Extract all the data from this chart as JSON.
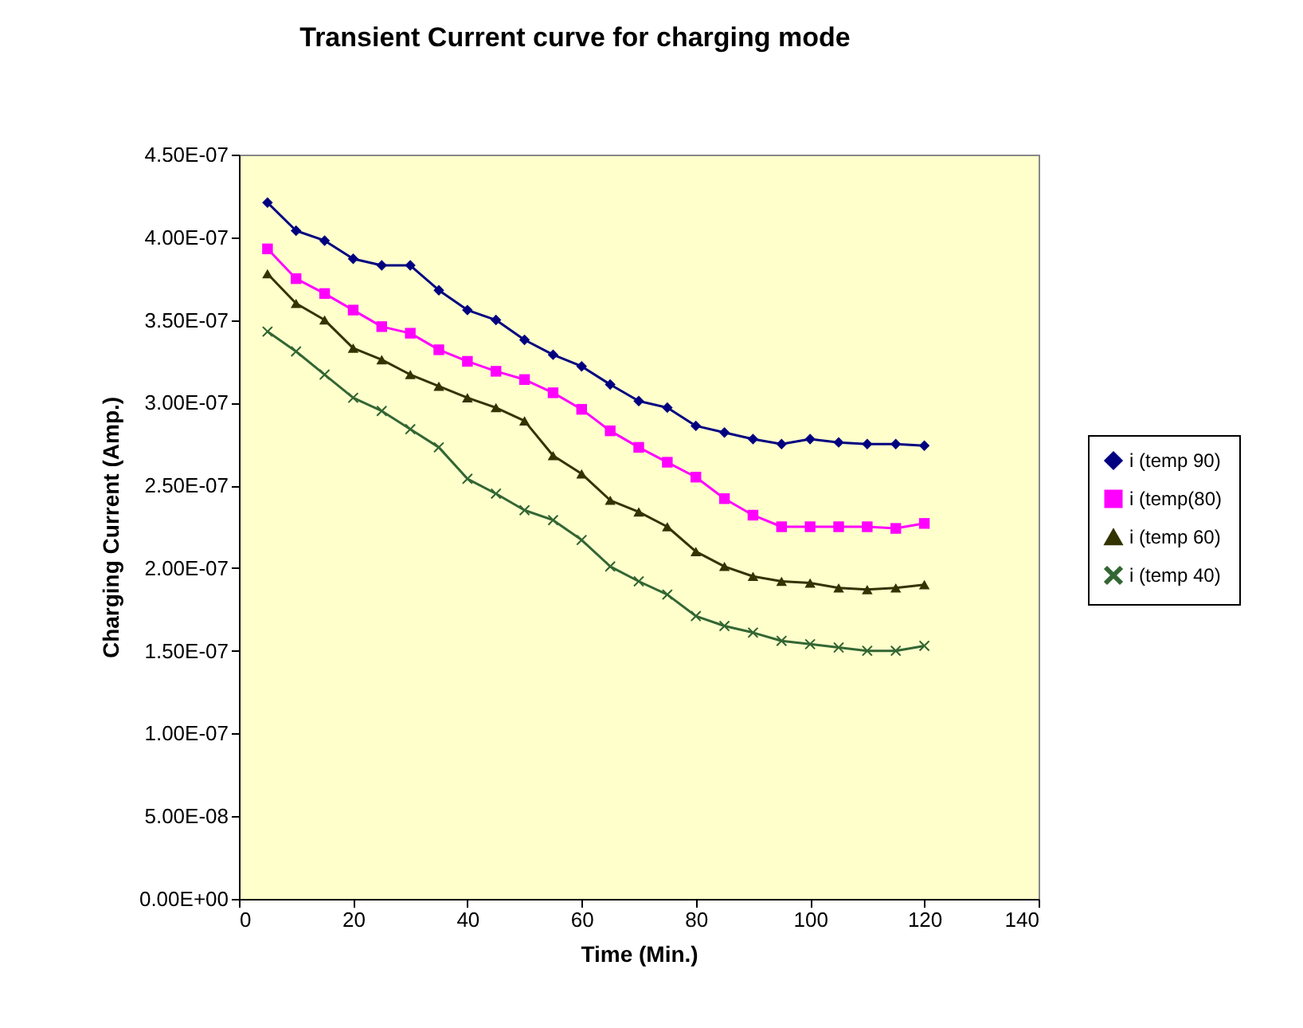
{
  "chart_data": {
    "type": "line",
    "title": "Transient Current curve for charging mode",
    "xlabel": "Time (Min.)",
    "ylabel": "Charging Current (Amp.)",
    "x": [
      5,
      10,
      15,
      20,
      25,
      30,
      35,
      40,
      45,
      50,
      55,
      60,
      65,
      70,
      75,
      80,
      85,
      90,
      95,
      100,
      105,
      110,
      115,
      120
    ],
    "series": [
      {
        "name": "i (temp 90)",
        "color": "#000080",
        "marker": "diamond",
        "values": [
          4.21e-07,
          4.04e-07,
          3.98e-07,
          3.87e-07,
          3.83e-07,
          3.83e-07,
          3.68e-07,
          3.56e-07,
          3.5e-07,
          3.38e-07,
          3.29e-07,
          3.22e-07,
          3.11e-07,
          3.01e-07,
          2.97e-07,
          2.86e-07,
          2.82e-07,
          2.78e-07,
          2.75e-07,
          2.78e-07,
          2.76e-07,
          2.75e-07,
          2.75e-07,
          2.74e-07
        ]
      },
      {
        "name": "i (temp(80)",
        "color": "#ff00ff",
        "marker": "square",
        "values": [
          3.93e-07,
          3.75e-07,
          3.66e-07,
          3.56e-07,
          3.46e-07,
          3.42e-07,
          3.32e-07,
          3.25e-07,
          3.19e-07,
          3.14e-07,
          3.06e-07,
          2.96e-07,
          2.83e-07,
          2.73e-07,
          2.64e-07,
          2.55e-07,
          2.42e-07,
          2.32e-07,
          2.25e-07,
          2.25e-07,
          2.25e-07,
          2.25e-07,
          2.24e-07,
          2.27e-07
        ]
      },
      {
        "name": "i (temp 60)",
        "color": "#333300",
        "marker": "triangle",
        "values": [
          3.78e-07,
          3.6e-07,
          3.5e-07,
          3.33e-07,
          3.26e-07,
          3.17e-07,
          3.1e-07,
          3.03e-07,
          2.97e-07,
          2.89e-07,
          2.68e-07,
          2.57e-07,
          2.41e-07,
          2.34e-07,
          2.25e-07,
          2.1e-07,
          2.01e-07,
          1.95e-07,
          1.92e-07,
          1.91e-07,
          1.88e-07,
          1.87e-07,
          1.88e-07,
          1.9e-07
        ]
      },
      {
        "name": "i (temp 40)",
        "color": "#336633",
        "marker": "cross",
        "values": [
          3.43e-07,
          3.31e-07,
          3.17e-07,
          3.03e-07,
          2.95e-07,
          2.84e-07,
          2.73e-07,
          2.54e-07,
          2.45e-07,
          2.35e-07,
          2.29e-07,
          2.17e-07,
          2.01e-07,
          1.92e-07,
          1.84e-07,
          1.71e-07,
          1.65e-07,
          1.61e-07,
          1.56e-07,
          1.54e-07,
          1.52e-07,
          1.5e-07,
          1.5e-07,
          1.53e-07
        ]
      }
    ],
    "xlim": [
      0,
      140
    ],
    "xticks": [
      0,
      20,
      40,
      60,
      80,
      100,
      120,
      140
    ],
    "ylim": [
      0,
      4.5e-07
    ],
    "yticks": [
      {
        "value": 0,
        "label": "0.00E+00"
      },
      {
        "value": 5e-08,
        "label": "5.00E-08"
      },
      {
        "value": 1e-07,
        "label": "1.00E-07"
      },
      {
        "value": 1.5e-07,
        "label": "1.50E-07"
      },
      {
        "value": 2e-07,
        "label": "2.00E-07"
      },
      {
        "value": 2.5e-07,
        "label": "2.50E-07"
      },
      {
        "value": 3e-07,
        "label": "3.00E-07"
      },
      {
        "value": 3.5e-07,
        "label": "3.50E-07"
      },
      {
        "value": 4e-07,
        "label": "4.00E-07"
      },
      {
        "value": 4.5e-07,
        "label": "4.50E-07"
      }
    ],
    "grid": false,
    "legend": "right"
  }
}
